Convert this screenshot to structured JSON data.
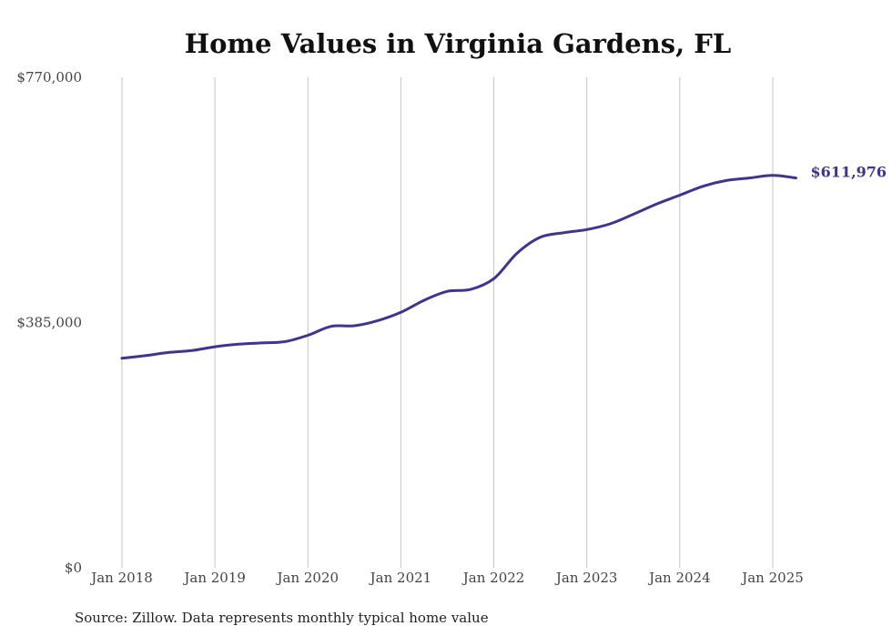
{
  "chart_data": {
    "type": "line",
    "title": "Home Values in Virginia Gardens, FL",
    "xlabel": "",
    "ylabel": "",
    "ylim": [
      0,
      770000
    ],
    "yticks": [
      0,
      385000,
      770000
    ],
    "ytick_labels": [
      "$0",
      "$385,000",
      "$770,000"
    ],
    "x_tick_values": [
      2018,
      2019,
      2020,
      2021,
      2022,
      2023,
      2024,
      2025
    ],
    "x_tick_labels": [
      "Jan 2018",
      "Jan 2019",
      "Jan 2020",
      "Jan 2021",
      "Jan 2022",
      "Jan 2023",
      "Jan 2024",
      "Jan 2025"
    ],
    "xlim": [
      2018,
      2025.25
    ],
    "grid": "vertical",
    "line_color": "#3d3590",
    "series": [
      {
        "values": [
          {
            "x": 2018.0,
            "y": 329000
          },
          {
            "x": 2018.25,
            "y": 333000
          },
          {
            "x": 2018.5,
            "y": 338000
          },
          {
            "x": 2018.75,
            "y": 341000
          },
          {
            "x": 2019.0,
            "y": 347000
          },
          {
            "x": 2019.25,
            "y": 351000
          },
          {
            "x": 2019.5,
            "y": 353000
          },
          {
            "x": 2019.75,
            "y": 355000
          },
          {
            "x": 2020.0,
            "y": 365000
          },
          {
            "x": 2020.25,
            "y": 379000
          },
          {
            "x": 2020.5,
            "y": 380000
          },
          {
            "x": 2020.75,
            "y": 388000
          },
          {
            "x": 2021.0,
            "y": 401000
          },
          {
            "x": 2021.25,
            "y": 420000
          },
          {
            "x": 2021.5,
            "y": 434000
          },
          {
            "x": 2021.75,
            "y": 437000
          },
          {
            "x": 2022.0,
            "y": 454000
          },
          {
            "x": 2022.25,
            "y": 494000
          },
          {
            "x": 2022.5,
            "y": 519000
          },
          {
            "x": 2022.75,
            "y": 526000
          },
          {
            "x": 2023.0,
            "y": 531000
          },
          {
            "x": 2023.25,
            "y": 540000
          },
          {
            "x": 2023.5,
            "y": 555000
          },
          {
            "x": 2023.75,
            "y": 571000
          },
          {
            "x": 2024.0,
            "y": 585000
          },
          {
            "x": 2024.25,
            "y": 599000
          },
          {
            "x": 2024.5,
            "y": 608000
          },
          {
            "x": 2024.75,
            "y": 612000
          },
          {
            "x": 2025.0,
            "y": 616000
          },
          {
            "x": 2025.25,
            "y": 611976
          }
        ]
      }
    ],
    "end_label": "$611,976",
    "source": "Source: Zillow. Data represents monthly typical home value"
  }
}
